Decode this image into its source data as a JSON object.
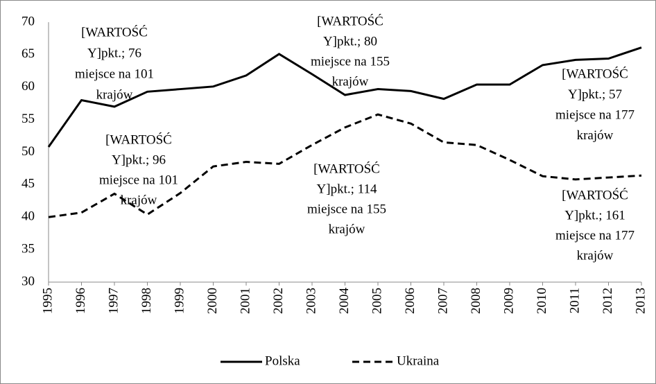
{
  "chart_data": {
    "type": "line",
    "x": [
      1995,
      1996,
      1997,
      1998,
      1999,
      2000,
      2001,
      2002,
      2003,
      2004,
      2005,
      2006,
      2007,
      2008,
      2009,
      2010,
      2011,
      2012,
      2013
    ],
    "xlim": [
      1995,
      2013
    ],
    "xticks": [
      1995,
      1996,
      1997,
      1998,
      1999,
      2000,
      2001,
      2002,
      2003,
      2004,
      2005,
      2006,
      2007,
      2008,
      2009,
      2010,
      2011,
      2012,
      2013
    ],
    "ylim": [
      30,
      70
    ],
    "yticks": [
      30,
      35,
      40,
      45,
      50,
      55,
      60,
      65,
      70
    ],
    "grid": false,
    "legend": "bottom",
    "series": [
      {
        "name": "Polska",
        "color": "#000000",
        "line_style": "solid",
        "values": [
          50.8,
          58,
          57,
          59.3,
          59.7,
          60.1,
          61.8,
          65.1,
          62,
          58.8,
          59.7,
          59.4,
          58.2,
          60.4,
          60.4,
          63.4,
          64.2,
          64.4,
          66.1
        ]
      },
      {
        "name": "Ukraina",
        "color": "#000000",
        "line_style": "dashed",
        "values": [
          40,
          40.7,
          43.6,
          40.4,
          43.7,
          47.8,
          48.5,
          48.2,
          51.1,
          53.8,
          55.8,
          54.4,
          51.5,
          51.1,
          48.8,
          46.3,
          45.8,
          46.1,
          46.4
        ]
      }
    ],
    "annotations": [
      [
        "[WARTOŚĆ",
        "Y]pkt.; 76",
        "miejsce na 101",
        "krajów"
      ],
      [
        "[WARTOŚĆ",
        "Y]pkt.; 80",
        "miejsce na 155",
        "krajów"
      ],
      [
        "[WARTOŚĆ",
        "Y]pkt.; 57",
        "miejsce na 177",
        "krajów"
      ],
      [
        "[WARTOŚĆ",
        "Y]pkt.; 96",
        "miejsce na 101",
        "krajów"
      ],
      [
        "[WARTOŚĆ",
        "Y]pkt.; 114",
        "miejsce na 155",
        "krajów"
      ],
      [
        "[WARTOŚĆ",
        "Y]pkt.; 161",
        "miejsce na 177",
        "krajów"
      ]
    ]
  }
}
